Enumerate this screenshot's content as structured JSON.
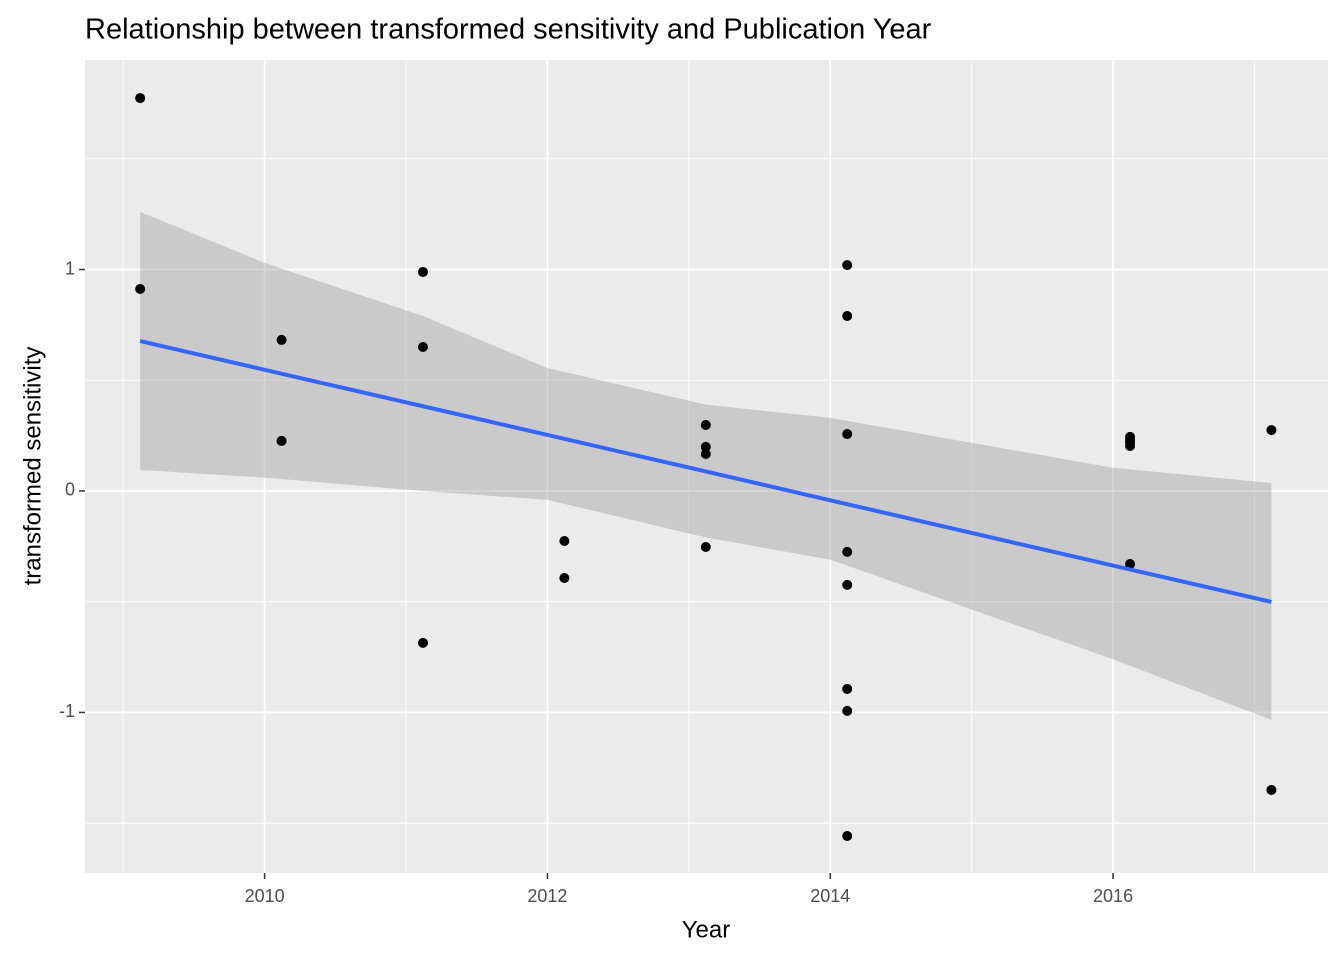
{
  "chart_data": {
    "type": "scatter",
    "title": "Relationship between transformed sensitivity and Publication Year",
    "x_label": "Year",
    "y_label": "transformed sensitivity",
    "points": {
      "color": "#000000",
      "x": [
        2009.12,
        2009.12,
        2010.12,
        2010.12,
        2011.12,
        2011.12,
        2011.12,
        2012.12,
        2012.12,
        2013.12,
        2013.12,
        2013.12,
        2013.12,
        2014.12,
        2014.12,
        2014.12,
        2014.12,
        2014.12,
        2014.12,
        2014.12,
        2014.12,
        2016.12,
        2016.12,
        2016.12,
        2016.12,
        2016.12,
        2017.12,
        2017.12
      ],
      "values": [
        1.774,
        0.912,
        0.682,
        0.226,
        0.989,
        0.65,
        -0.686,
        -0.226,
        -0.393,
        0.298,
        0.199,
        0.167,
        -0.253,
        1.02,
        0.79,
        0.257,
        -0.275,
        -0.424,
        -0.894,
        -0.993,
        -1.558,
        0.244,
        0.23,
        0.217,
        0.203,
        -0.33,
        0.275,
        -1.35
      ]
    },
    "smooth": {
      "color": "#3366ff",
      "band_color": "#999999",
      "x": [
        2009.12,
        2010,
        2011.12,
        2012,
        2013.12,
        2014,
        2016,
        2017.12
      ],
      "values": [
        0.677,
        0.547,
        0.3825,
        0.253,
        0.088,
        -0.042,
        -0.337,
        -0.501
      ],
      "lower": [
        0.095,
        0.06,
        0.0,
        -0.04,
        -0.21,
        -0.31,
        -0.76,
        -1.034
      ],
      "upper": [
        1.26,
        1.03,
        0.79,
        0.555,
        0.39,
        0.33,
        0.105,
        0.036
      ]
    },
    "xlim": [
      2008.73,
      2017.52
    ],
    "ylim": [
      -1.725,
      1.946
    ],
    "xticks": [
      2010,
      2012,
      2014,
      2016
    ],
    "yticks": [
      -1,
      0,
      1
    ],
    "minor_xticks": [
      2009,
      2011,
      2013,
      2015,
      2017
    ],
    "minor_yticks": [
      -1.5,
      -0.5,
      0.5,
      1.5
    ],
    "grid": true
  }
}
